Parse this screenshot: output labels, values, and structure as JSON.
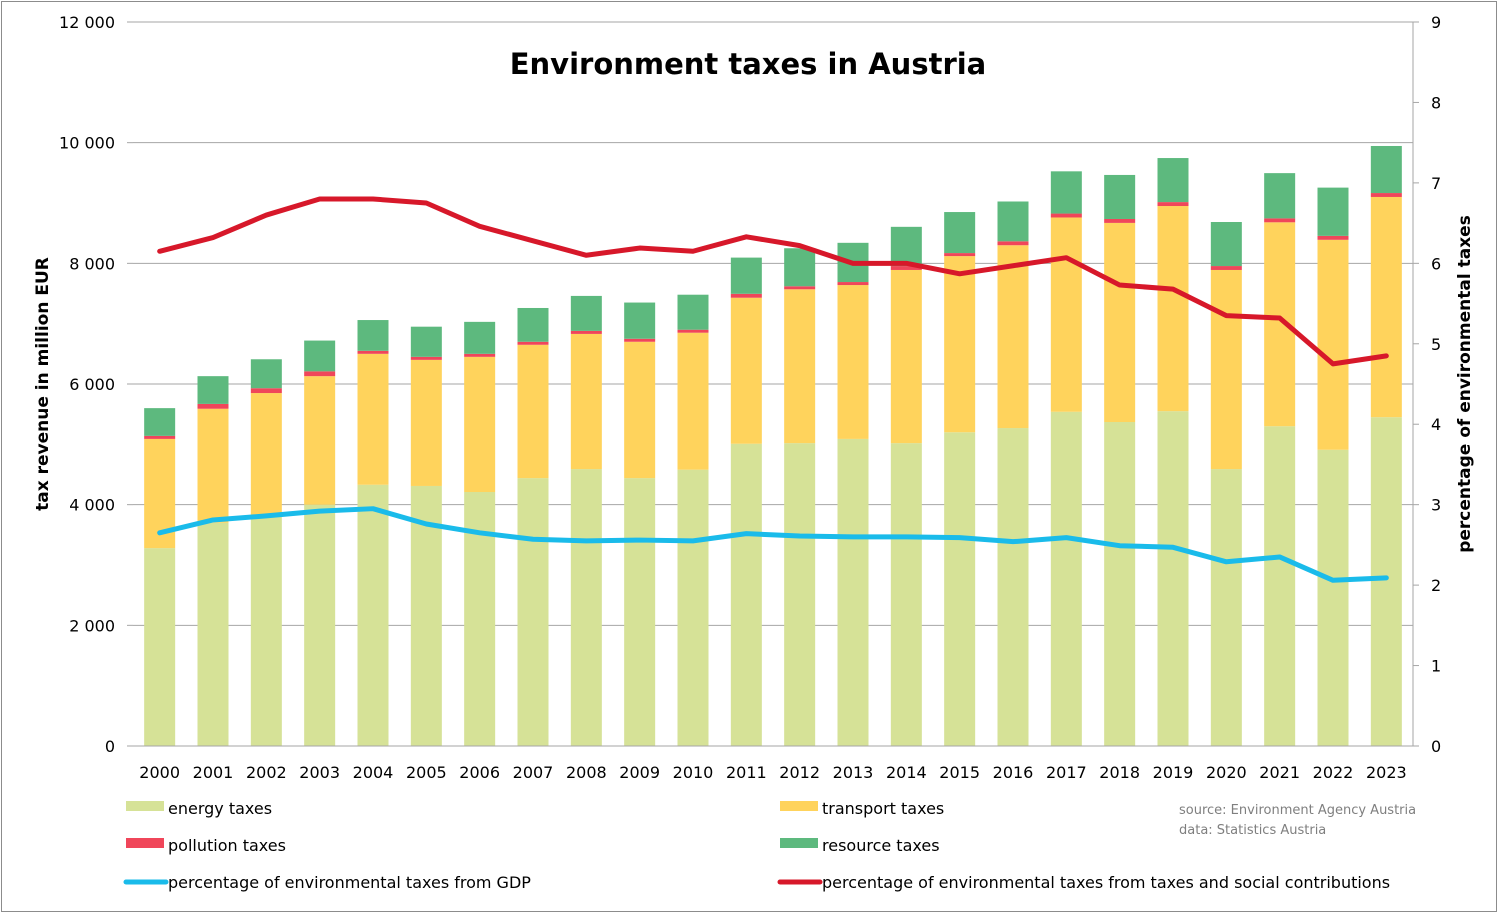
{
  "chart_data": {
    "type": "bar",
    "stacked": true,
    "title": "Environment taxes in Austria",
    "ylabel": "tax revenue in million EUR",
    "y2label": "percentage of environmental taxes",
    "ylim": [
      0,
      12000
    ],
    "y2lim": [
      0,
      9
    ],
    "yticks": [
      "0",
      "2 000",
      "4 000",
      "6 000",
      "8 000",
      "10 000",
      "12 000"
    ],
    "y2ticks": [
      "0",
      "1",
      "2",
      "3",
      "4",
      "5",
      "6",
      "7",
      "8",
      "9"
    ],
    "grid": true,
    "categories": [
      "2000",
      "2001",
      "2002",
      "2003",
      "2004",
      "2005",
      "2006",
      "2007",
      "2008",
      "2009",
      "2010",
      "2011",
      "2012",
      "2013",
      "2014",
      "2015",
      "2016",
      "2017",
      "2018",
      "2019",
      "2020",
      "2021",
      "2022",
      "2023"
    ],
    "series": [
      {
        "name": "energy taxes",
        "type": "bar",
        "color": "#d6e297",
        "values": [
          3280,
          3700,
          3800,
          4000,
          4330,
          4310,
          4210,
          4440,
          4590,
          4440,
          4580,
          5010,
          5020,
          5090,
          5020,
          5200,
          5270,
          5540,
          5370,
          5550,
          4590,
          5300,
          4910,
          5450
        ]
      },
      {
        "name": "transport taxes",
        "type": "bar",
        "color": "#ffd35c",
        "values": [
          1810,
          1890,
          2050,
          2130,
          2170,
          2090,
          2240,
          2210,
          2240,
          2260,
          2270,
          2420,
          2550,
          2550,
          2870,
          2920,
          3030,
          3220,
          3300,
          3400,
          3300,
          3380,
          3480,
          3650
        ]
      },
      {
        "name": "pollution taxes",
        "type": "bar",
        "color": "#f0465a",
        "values": [
          50,
          80,
          80,
          80,
          50,
          50,
          50,
          50,
          50,
          50,
          50,
          65,
          50,
          50,
          65,
          50,
          65,
          65,
          65,
          65,
          65,
          65,
          65,
          65
        ]
      },
      {
        "name": "resource taxes",
        "type": "bar",
        "color": "#5db97e",
        "values": [
          460,
          460,
          480,
          510,
          510,
          500,
          530,
          560,
          580,
          600,
          580,
          600,
          630,
          650,
          650,
          680,
          660,
          700,
          730,
          730,
          730,
          750,
          800,
          780
        ]
      },
      {
        "name": "percentage of environmental taxes from GDP",
        "type": "line",
        "axis": "right",
        "color": "#1abbea",
        "values": [
          2.65,
          2.81,
          2.86,
          2.92,
          2.95,
          2.76,
          2.65,
          2.57,
          2.55,
          2.56,
          2.55,
          2.64,
          2.61,
          2.6,
          2.6,
          2.59,
          2.54,
          2.59,
          2.49,
          2.47,
          2.29,
          2.35,
          2.06,
          2.09
        ]
      },
      {
        "name": "percentage of environmental taxes from taxes and social contributions",
        "type": "line",
        "axis": "right",
        "color": "#d7182a",
        "values": [
          6.15,
          6.32,
          6.6,
          6.8,
          6.8,
          6.75,
          6.46,
          6.28,
          6.1,
          6.19,
          6.15,
          6.33,
          6.22,
          6.0,
          6.0,
          5.87,
          5.97,
          6.07,
          5.73,
          5.68,
          5.35,
          5.32,
          4.75,
          4.85
        ]
      }
    ],
    "legend_placement": "bottom",
    "annotations": [
      "source: Environment Agency Austria",
      "data: Statistics Austria"
    ]
  }
}
